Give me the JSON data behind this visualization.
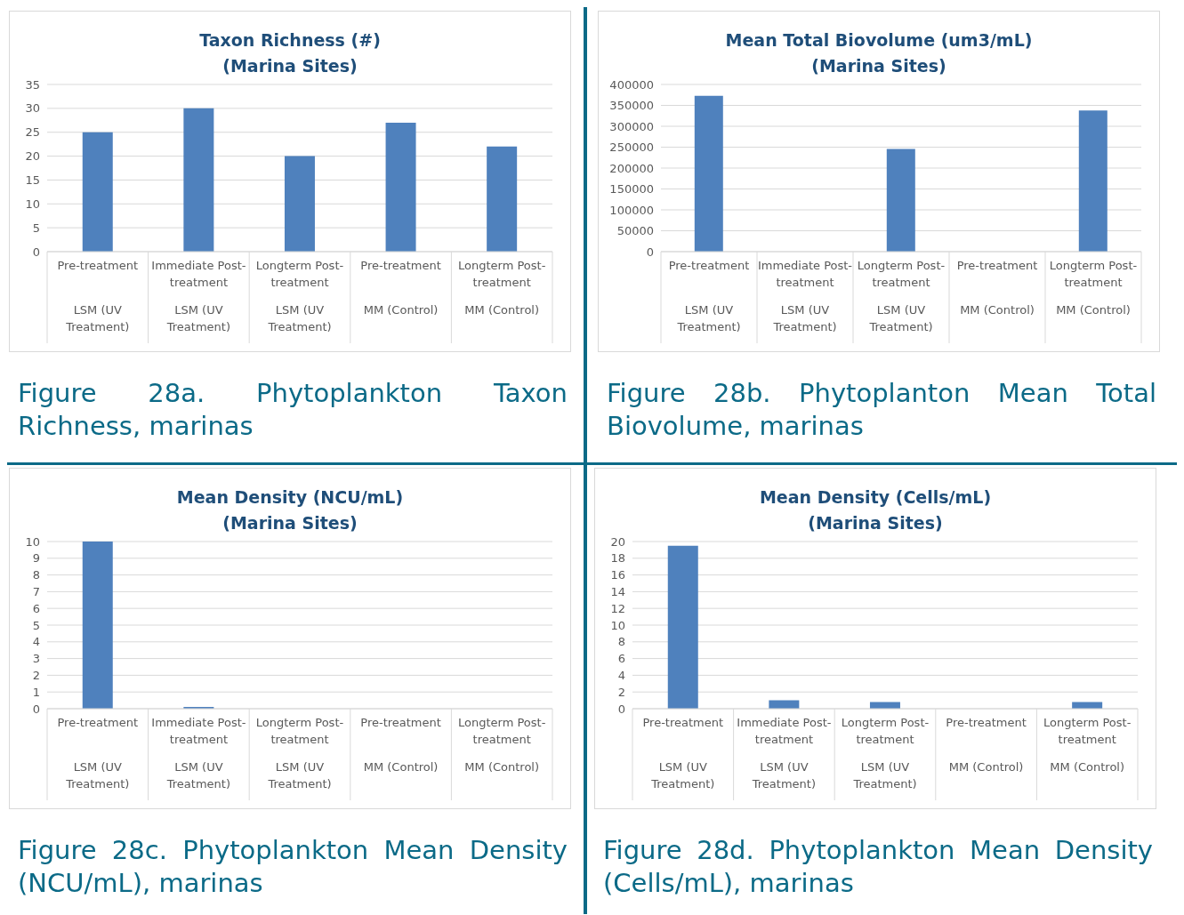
{
  "chart_data": [
    {
      "type": "bar",
      "title": "Taxon Richness (#)\n(Marina Sites)",
      "categories": [
        "Pre-treatment\nLSM (UV Treatment)",
        "Immediate Post-treatment\nLSM (UV Treatment)",
        "Longterm Post-treatment\nLSM (UV Treatment)",
        "Pre-treatment\nMM (Control)",
        "Longterm Post-treatment\nMM (Control)"
      ],
      "values": [
        25,
        30,
        20,
        27,
        22
      ],
      "color": "#4f81bd",
      "ylim": [
        0,
        35
      ],
      "yticks": [
        0,
        5,
        10,
        15,
        20,
        25,
        30,
        35
      ],
      "grid": "y",
      "legend": false,
      "annotations": [
        "Figure 28a. Phytoplankton Taxon Richness, marinas"
      ]
    },
    {
      "type": "bar",
      "title": "Mean Total Biovolume (um3/mL)\n(Marina Sites)",
      "categories": [
        "Pre-treatment\nLSM (UV Treatment)",
        "Immediate Post-treatment\nLSM (UV Treatment)",
        "Longterm Post-treatment\nLSM (UV Treatment)",
        "Pre-treatment\nMM (Control)",
        "Longterm Post-treatment\nMM (Control)"
      ],
      "values": [
        373000,
        0,
        246000,
        0,
        338000
      ],
      "color": "#4f81bd",
      "ylim": [
        0,
        400000
      ],
      "yticks": [
        0,
        50000,
        100000,
        150000,
        200000,
        250000,
        300000,
        350000,
        400000
      ],
      "grid": "y",
      "legend": false,
      "annotations": [
        "Figure 28b. Phytoplanton Mean Total Biovolume, marinas"
      ]
    },
    {
      "type": "bar",
      "title": "Mean Density (NCU/mL)\n(Marina Sites)",
      "categories": [
        "Pre-treatment\nLSM (UV Treatment)",
        "Immediate Post-treatment\nLSM (UV Treatment)",
        "Longterm Post-treatment\nLSM (UV Treatment)",
        "Pre-treatment\nMM (Control)",
        "Longterm Post-treatment\nMM (Control)"
      ],
      "values": [
        10,
        0.1,
        0,
        0,
        0
      ],
      "color": "#4f81bd",
      "ylim": [
        0,
        10
      ],
      "yticks": [
        0,
        1,
        2,
        3,
        4,
        5,
        6,
        7,
        8,
        9,
        10
      ],
      "grid": "y",
      "legend": false,
      "annotations": [
        "Figure 28c. Phytoplankton Mean Density (NCU/mL), marinas"
      ]
    },
    {
      "type": "bar",
      "title": "Mean Density (Cells/mL)\n(Marina Sites)",
      "categories": [
        "Pre-treatment\nLSM (UV Treatment)",
        "Immediate Post-treatment\nLSM (UV Treatment)",
        "Longterm Post-treatment\nLSM (UV Treatment)",
        "Pre-treatment\nMM (Control)",
        "Longterm Post-treatment\nMM (Control)"
      ],
      "values": [
        19.5,
        1,
        0.8,
        0,
        0.8
      ],
      "color": "#4f81bd",
      "ylim": [
        0,
        20
      ],
      "yticks": [
        0,
        2,
        4,
        6,
        8,
        10,
        12,
        14,
        16,
        18,
        20
      ],
      "grid": "y",
      "legend": false,
      "annotations": [
        "Figure 28d. Phytoplankton Mean Density (Cells/mL), marinas"
      ]
    }
  ]
}
